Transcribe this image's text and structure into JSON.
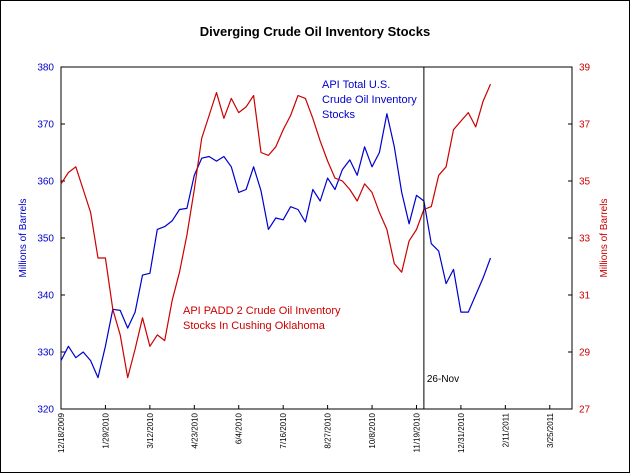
{
  "chart_data": {
    "type": "line",
    "title": "Diverging Crude Oil Inventory Stocks",
    "xlabel": "",
    "ylabel_left": "Millions of Barrels",
    "ylabel_right": "Millions of Barrels",
    "ylim_left": [
      320,
      380
    ],
    "ylim_right": [
      27,
      39
    ],
    "yticks_left": [
      "320",
      "330",
      "340",
      "350",
      "360",
      "370",
      "380"
    ],
    "yticks_right": [
      "27",
      "29",
      "31",
      "33",
      "35",
      "37",
      "39"
    ],
    "xlim": [
      "2009-12-18",
      "2011-04-15"
    ],
    "x_tick_labels": [
      "12/18/2009",
      "1/29/2010",
      "3/12/2010",
      "4/23/2010",
      "6/4/2010",
      "7/16/2010",
      "8/27/2010",
      "10/8/2010",
      "11/19/2010",
      "12/31/2010",
      "2/11/2011",
      "3/25/2011"
    ],
    "x_tick_dates": [
      "2009-12-18",
      "2010-01-29",
      "2010-03-12",
      "2010-04-23",
      "2010-06-04",
      "2010-07-16",
      "2010-08-27",
      "2010-10-08",
      "2010-11-19",
      "2010-12-31",
      "2011-02-11",
      "2011-03-25"
    ],
    "grid": false,
    "colors": {
      "api_total": "#0000cc",
      "cushing": "#cc0000",
      "frame": "#000000"
    },
    "series": [
      {
        "name": "API Total U.S. Crude Oil Inventory Stocks",
        "axis": "left",
        "color": "#0000cc",
        "x": [
          "2009-12-18",
          "2009-12-25",
          "2010-01-01",
          "2010-01-08",
          "2010-01-15",
          "2010-01-22",
          "2010-01-29",
          "2010-02-05",
          "2010-02-12",
          "2010-02-19",
          "2010-02-26",
          "2010-03-05",
          "2010-03-12",
          "2010-03-19",
          "2010-03-26",
          "2010-04-02",
          "2010-04-09",
          "2010-04-16",
          "2010-04-23",
          "2010-04-30",
          "2010-05-07",
          "2010-05-14",
          "2010-05-21",
          "2010-05-28",
          "2010-06-04",
          "2010-06-11",
          "2010-06-18",
          "2010-06-25",
          "2010-07-02",
          "2010-07-09",
          "2010-07-16",
          "2010-07-23",
          "2010-07-30",
          "2010-08-06",
          "2010-08-13",
          "2010-08-20",
          "2010-08-27",
          "2010-09-03",
          "2010-09-10",
          "2010-09-17",
          "2010-09-24",
          "2010-10-01",
          "2010-10-08",
          "2010-10-15",
          "2010-10-22",
          "2010-10-29",
          "2010-11-05",
          "2010-11-12",
          "2010-11-19",
          "2010-11-26",
          "2010-12-03",
          "2010-12-10",
          "2010-12-17",
          "2010-12-24",
          "2010-12-31",
          "2011-01-07",
          "2011-01-14",
          "2011-01-21",
          "2011-01-28"
        ],
        "values": [
          328.5,
          331,
          329,
          330,
          328.5,
          325.5,
          331,
          337.5,
          337.3,
          334.2,
          337,
          343.5,
          343.8,
          351.5,
          352,
          353,
          355,
          355.2,
          361,
          364,
          364.3,
          363.5,
          364.3,
          362.5,
          358,
          358.5,
          362.5,
          358.3,
          351.5,
          353.5,
          353.2,
          355.5,
          355,
          352.8,
          358.5,
          356.5,
          360.5,
          358.5,
          362,
          363.7,
          361,
          366,
          362.5,
          365,
          371.8,
          366,
          358,
          352.5,
          357.5,
          356.5,
          349,
          347.7,
          342,
          344.5,
          337,
          337,
          340,
          343,
          346.5
        ]
      },
      {
        "name": "API PADD 2 Crude Oil Inventory Stocks In Cushing Oklahoma",
        "axis": "right",
        "color": "#cc0000",
        "x": [
          "2009-12-18",
          "2009-12-25",
          "2010-01-01",
          "2010-01-08",
          "2010-01-15",
          "2010-01-22",
          "2010-01-29",
          "2010-02-05",
          "2010-02-12",
          "2010-02-19",
          "2010-02-26",
          "2010-03-05",
          "2010-03-12",
          "2010-03-19",
          "2010-03-26",
          "2010-04-02",
          "2010-04-09",
          "2010-04-16",
          "2010-04-23",
          "2010-04-30",
          "2010-05-07",
          "2010-05-14",
          "2010-05-21",
          "2010-05-28",
          "2010-06-04",
          "2010-06-11",
          "2010-06-18",
          "2010-06-25",
          "2010-07-02",
          "2010-07-09",
          "2010-07-16",
          "2010-07-23",
          "2010-07-30",
          "2010-08-06",
          "2010-08-13",
          "2010-08-20",
          "2010-08-27",
          "2010-09-03",
          "2010-09-10",
          "2010-09-17",
          "2010-09-24",
          "2010-10-01",
          "2010-10-08",
          "2010-10-15",
          "2010-10-22",
          "2010-10-29",
          "2010-11-05",
          "2010-11-12",
          "2010-11-19",
          "2010-11-26",
          "2010-12-03",
          "2010-12-10",
          "2010-12-17",
          "2010-12-24",
          "2010-12-31",
          "2011-01-07",
          "2011-01-14",
          "2011-01-21",
          "2011-01-28"
        ],
        "values": [
          34.9,
          35.3,
          35.5,
          34.7,
          33.9,
          32.3,
          32.3,
          30.5,
          29.6,
          28.1,
          29.1,
          30.2,
          29.2,
          29.6,
          29.4,
          30.8,
          31.8,
          33.1,
          34.7,
          36.5,
          37.3,
          38.1,
          37.2,
          37.9,
          37.4,
          37.6,
          38,
          36,
          35.9,
          36.2,
          36.8,
          37.3,
          38,
          37.9,
          37.2,
          36.4,
          35.7,
          35.1,
          35,
          34.7,
          34.3,
          34.9,
          34.6,
          33.9,
          33.3,
          32.1,
          31.8,
          32.9,
          33.3,
          34,
          34.1,
          35.2,
          35.5,
          36.8,
          37.1,
          37.4,
          36.9,
          37.8,
          38.4
        ]
      }
    ],
    "annotations": [
      {
        "text": "26-Nov",
        "x": "2010-11-26",
        "type": "vertical-line"
      },
      {
        "text": "API Total U.S. Crude Oil Inventory Stocks",
        "lines": [
          "API Total U.S.",
          "Crude Oil Inventory",
          "Stocks"
        ],
        "series": "API Total U.S. Crude Oil Inventory Stocks"
      },
      {
        "text": "API PADD 2 Crude Oil Inventory Stocks In Cushing Oklahoma",
        "lines": [
          "API PADD 2 Crude Oil Inventory",
          "Stocks In Cushing Oklahoma"
        ],
        "series": "API PADD 2 Crude Oil Inventory Stocks In Cushing Oklahoma"
      }
    ]
  }
}
